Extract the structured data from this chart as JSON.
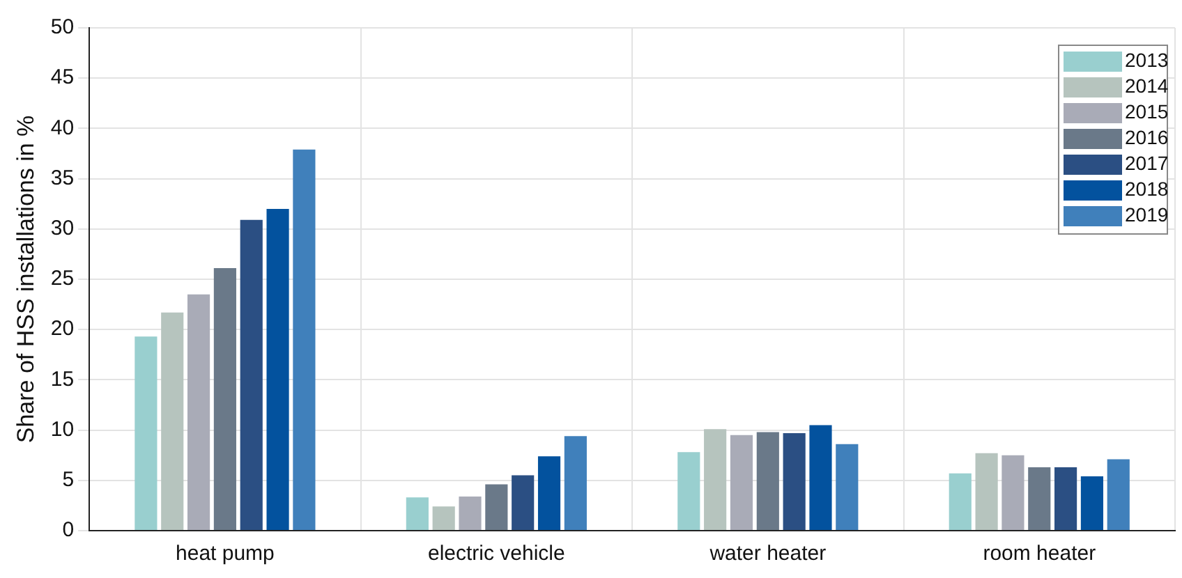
{
  "chart_data": {
    "type": "bar",
    "ylabel": "Share of HSS installations in %",
    "categories": [
      "heat pump",
      "electric vehicle",
      "water heater",
      "room heater"
    ],
    "series": [
      {
        "name": "2013",
        "color": "#99cfcf",
        "values": [
          19.3,
          3.3,
          7.8,
          5.7
        ]
      },
      {
        "name": "2014",
        "color": "#b6c4be",
        "values": [
          21.7,
          2.4,
          10.1,
          7.7
        ]
      },
      {
        "name": "2015",
        "color": "#a9abb7",
        "values": [
          23.5,
          3.4,
          9.5,
          7.5
        ]
      },
      {
        "name": "2016",
        "color": "#6a7989",
        "values": [
          26.1,
          4.6,
          9.8,
          6.3
        ]
      },
      {
        "name": "2017",
        "color": "#2b4f83",
        "values": [
          30.9,
          5.5,
          9.7,
          6.3
        ]
      },
      {
        "name": "2018",
        "color": "#03529e",
        "values": [
          32.0,
          7.4,
          10.5,
          5.4
        ]
      },
      {
        "name": "2019",
        "color": "#4080bb",
        "values": [
          37.9,
          9.4,
          8.6,
          7.1
        ]
      }
    ],
    "ylim": [
      0,
      50
    ],
    "yticks": [
      0,
      5,
      10,
      15,
      20,
      25,
      30,
      35,
      40,
      45,
      50
    ],
    "grid": true,
    "legend": "top right"
  }
}
